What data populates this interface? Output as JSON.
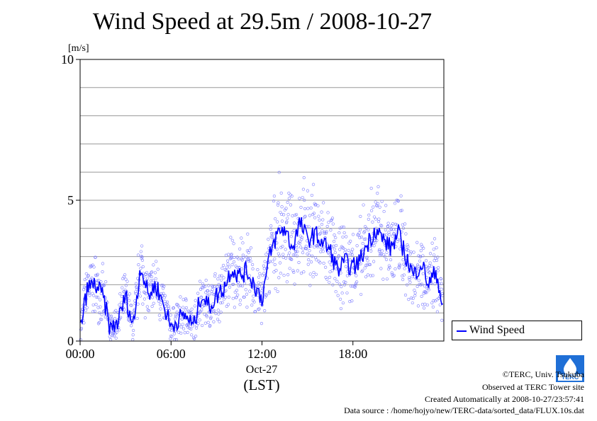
{
  "title": "Wind Speed at 29.5m / 2008-10-27",
  "legend": {
    "label": "Wind Speed"
  },
  "colors": {
    "series": "#0000ff",
    "points": "#7b7bff",
    "grid": "#999999"
  },
  "footer": {
    "copyright": "©TERC, Univ. Tsukuba",
    "observed": "Observed at TERC Tower site",
    "created": "Created Automatically at 2008-10-27/23:57:41",
    "source": "Data source : /home/hojyo/new/TERC-data/sorted_data/FLUX.10s.dat"
  },
  "logo": {
    "icon": "terc-logo-icon",
    "text": "TERC"
  },
  "chart_data": {
    "type": "scatter",
    "title": "Wind Speed at 29.5m / 2008-10-27",
    "ylabel": "[m/s]",
    "xlabel": "(LST)",
    "date_label": "Oct-27",
    "ylim": [
      0,
      10
    ],
    "xlim": [
      "00:00",
      "23:59"
    ],
    "x_ticks": [
      "00:00",
      "06:00",
      "12:00",
      "18:00"
    ],
    "y_ticks": [
      "0",
      "5",
      "10"
    ],
    "grid": true,
    "legend_position": "bottom-right",
    "series": [
      {
        "name": "Wind Speed",
        "x": [
          "00:00",
          "00:30",
          "01:00",
          "01:30",
          "02:00",
          "02:30",
          "03:00",
          "03:30",
          "04:00",
          "04:30",
          "05:00",
          "05:30",
          "06:00",
          "06:30",
          "07:00",
          "07:30",
          "08:00",
          "08:30",
          "09:00",
          "09:30",
          "10:00",
          "10:30",
          "11:00",
          "11:30",
          "12:00",
          "12:30",
          "13:00",
          "13:30",
          "14:00",
          "14:30",
          "15:00",
          "15:30",
          "16:00",
          "16:30",
          "17:00",
          "17:30",
          "18:00",
          "18:30",
          "19:00",
          "19:30",
          "20:00",
          "20:30",
          "21:00",
          "21:30",
          "22:00",
          "22:30",
          "23:00",
          "23:30",
          "23:55"
        ],
        "values": [
          0.4,
          1.9,
          2.0,
          1.6,
          0.4,
          0.7,
          1.6,
          0.5,
          2.7,
          1.6,
          2.0,
          1.3,
          0.5,
          0.8,
          0.9,
          0.5,
          1.7,
          1.2,
          1.6,
          1.9,
          2.6,
          2.3,
          2.5,
          2.0,
          1.5,
          3.0,
          3.8,
          4.0,
          3.3,
          4.2,
          3.6,
          3.8,
          3.5,
          3.2,
          2.5,
          2.8,
          2.6,
          2.9,
          3.5,
          4.0,
          3.6,
          3.3,
          3.8,
          3.0,
          2.3,
          2.8,
          2.0,
          2.5,
          1.2
        ]
      }
    ]
  }
}
